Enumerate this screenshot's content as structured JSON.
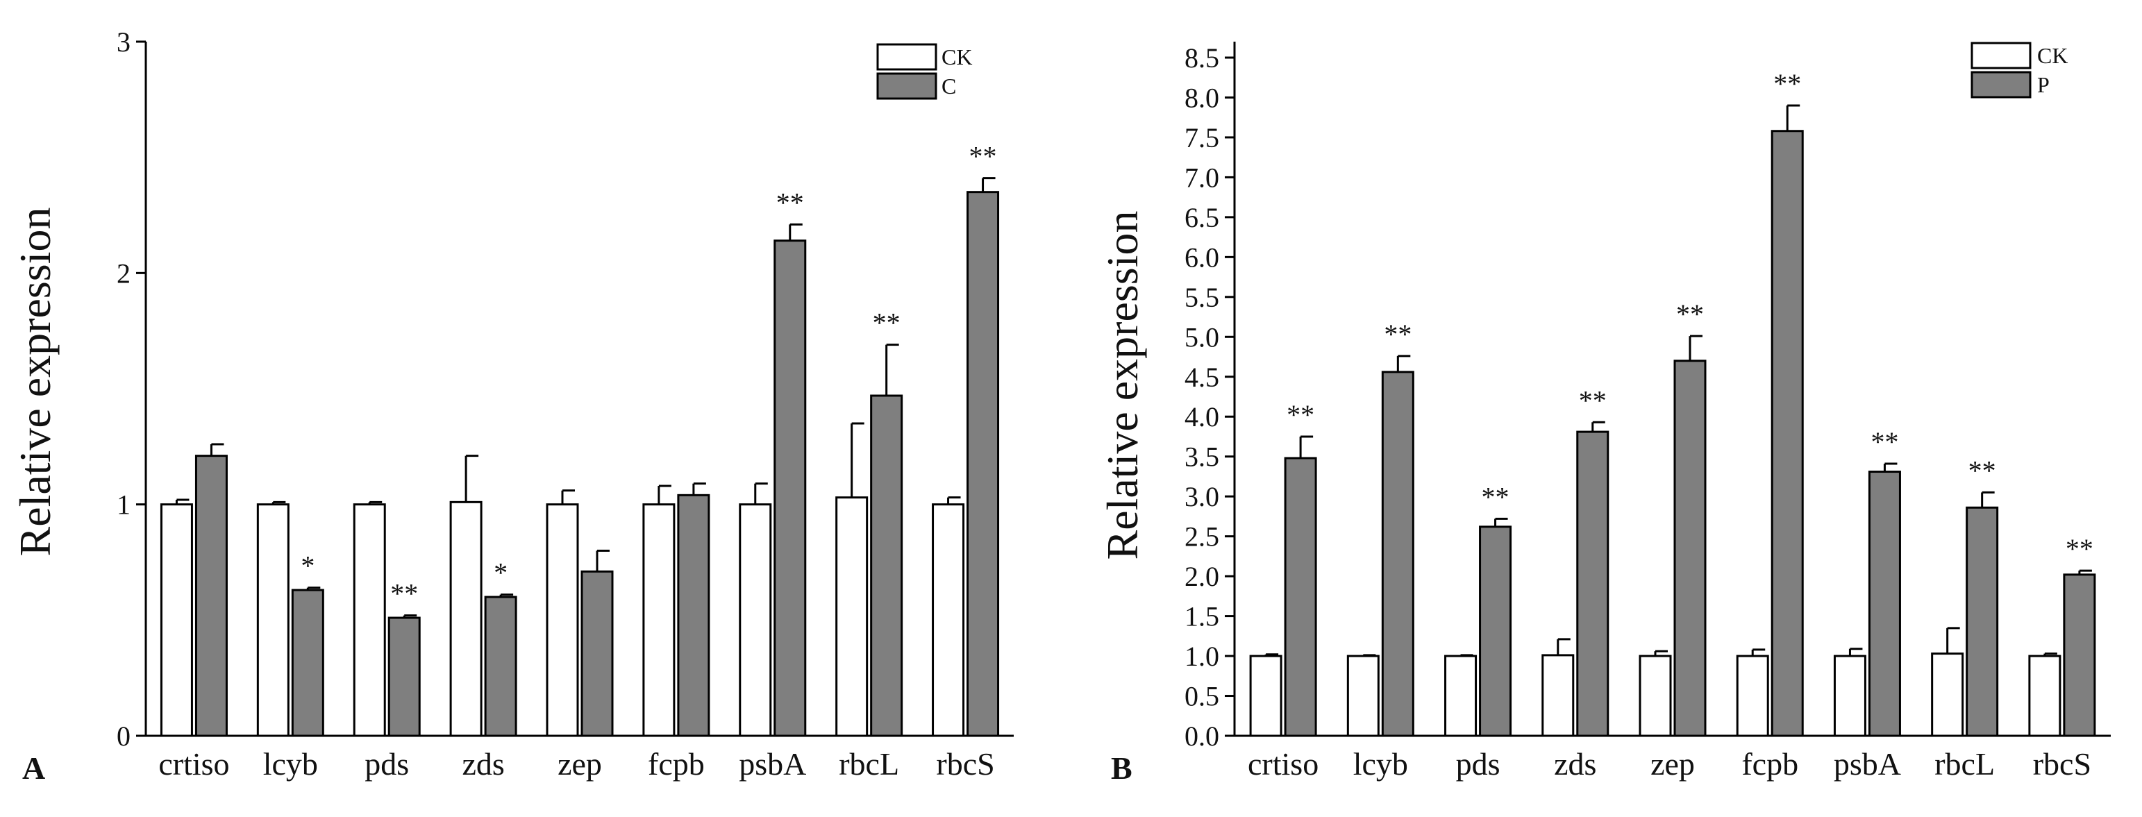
{
  "chart_data": [
    {
      "type": "bar",
      "panel_label": "A",
      "title": "",
      "xlabel": "",
      "ylabel": "Relative expression",
      "ylim": [
        0,
        3
      ],
      "yticks": [
        "0",
        "1",
        "2",
        "3"
      ],
      "grid": false,
      "legend_position": "top-right",
      "categories": [
        "crtiso",
        "lcyb",
        "pds",
        "zds",
        "zep",
        "fcpb",
        "psbA",
        "rbcL",
        "rbcS"
      ],
      "series": [
        {
          "name": "CK",
          "color": "#ffffff",
          "values": [
            1.0,
            1.0,
            1.0,
            1.01,
            1.0,
            1.0,
            1.0,
            1.03,
            1.0
          ],
          "errors": [
            0.02,
            0.01,
            0.01,
            0.2,
            0.06,
            0.08,
            0.09,
            0.32,
            0.03
          ]
        },
        {
          "name": "C",
          "color": "#7f7f7f",
          "values": [
            1.21,
            0.63,
            0.51,
            0.6,
            0.71,
            1.04,
            2.14,
            1.47,
            2.35
          ],
          "errors": [
            0.05,
            0.01,
            0.01,
            0.01,
            0.09,
            0.05,
            0.07,
            0.22,
            0.06
          ]
        }
      ],
      "annotations": [
        "",
        "*",
        "**",
        "*",
        "",
        "",
        "**",
        "**",
        "**"
      ]
    },
    {
      "type": "bar",
      "panel_label": "B",
      "title": "",
      "xlabel": "",
      "ylabel": "Relative expression",
      "ylim": [
        0,
        8.7
      ],
      "yticks": [
        "0.0",
        "0.5",
        "1.0",
        "1.5",
        "2.0",
        "2.5",
        "3.0",
        "3.5",
        "4.0",
        "4.5",
        "5.0",
        "5.5",
        "6.0",
        "6.5",
        "7.0",
        "7.5",
        "8.0",
        "8.5"
      ],
      "grid": false,
      "legend_position": "top-right",
      "categories": [
        "crtiso",
        "lcyb",
        "pds",
        "zds",
        "zep",
        "fcpb",
        "psbA",
        "rbcL",
        "rbcS"
      ],
      "series": [
        {
          "name": "CK",
          "color": "#ffffff",
          "values": [
            1.0,
            1.0,
            1.0,
            1.01,
            1.0,
            1.0,
            1.0,
            1.03,
            1.0
          ],
          "errors": [
            0.02,
            0.01,
            0.01,
            0.2,
            0.06,
            0.08,
            0.09,
            0.32,
            0.03
          ]
        },
        {
          "name": "P",
          "color": "#7f7f7f",
          "values": [
            3.48,
            4.56,
            2.62,
            3.81,
            4.7,
            7.58,
            3.31,
            2.86,
            2.02
          ],
          "errors": [
            0.27,
            0.2,
            0.1,
            0.12,
            0.31,
            0.32,
            0.1,
            0.19,
            0.05
          ]
        }
      ],
      "annotations": [
        "**",
        "**",
        "**",
        "**",
        "**",
        "**",
        "**",
        "**",
        "**"
      ]
    }
  ]
}
